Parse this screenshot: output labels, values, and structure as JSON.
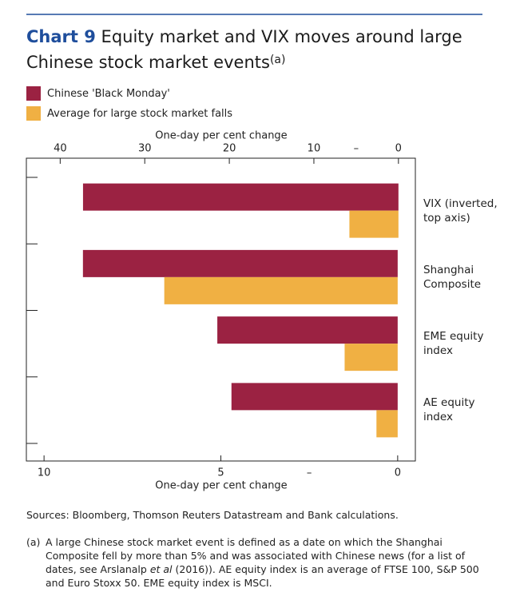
{
  "chart_data": {
    "type": "bar",
    "orientation": "horizontal",
    "title_label": "Chart 9",
    "title": "Equity market and VIX moves around large Chinese stock market events",
    "title_note": "(a)",
    "categories": [
      "VIX (inverted, top axis)",
      "Shanghai Composite",
      "EME equity index",
      "AE equity index"
    ],
    "category_axes": [
      "x2",
      "x",
      "x",
      "x"
    ],
    "series": [
      {
        "name": "Chinese 'Black Monday'",
        "color": "#9b2242",
        "values": [
          -37.3,
          -8.9,
          -5.1,
          -4.7
        ]
      },
      {
        "name": "Average for large stock market falls",
        "color": "#f0b043",
        "values": [
          -5.8,
          -6.6,
          -1.5,
          -0.6
        ]
      }
    ],
    "x_label": "One-day per cent change",
    "x2_label": "One-day per cent change",
    "xlim": [
      -10.5,
      0.5
    ],
    "xticks": [
      {
        "value": -10,
        "label": "10"
      },
      {
        "value": -5,
        "label": "5"
      },
      {
        "value": -2.5,
        "label": "–"
      },
      0
    ],
    "x2lim": [
      -44,
      2
    ],
    "x2ticks": [
      {
        "value": -40,
        "label": "40"
      },
      {
        "value": -30,
        "label": "30"
      },
      {
        "value": -20,
        "label": "20"
      },
      {
        "value": -10,
        "label": "10"
      },
      {
        "value": -5,
        "label": "–"
      },
      0
    ],
    "sources": "Sources: Bloomberg, Thomson Reuters Datastream and Bank calculations.",
    "footnote_label": "(a)",
    "footnote": [
      "A large Chinese stock market event is defined as a date on which the Shanghai Composite fell by more than 5% and was associated with Chinese news (for a list of dates, see Arslanalp ",
      "et al",
      " (2016)). AE equity index is an average of FTSE 100, S&P 500 and Euro Stoxx 50. EME equity index is MSCI."
    ]
  }
}
